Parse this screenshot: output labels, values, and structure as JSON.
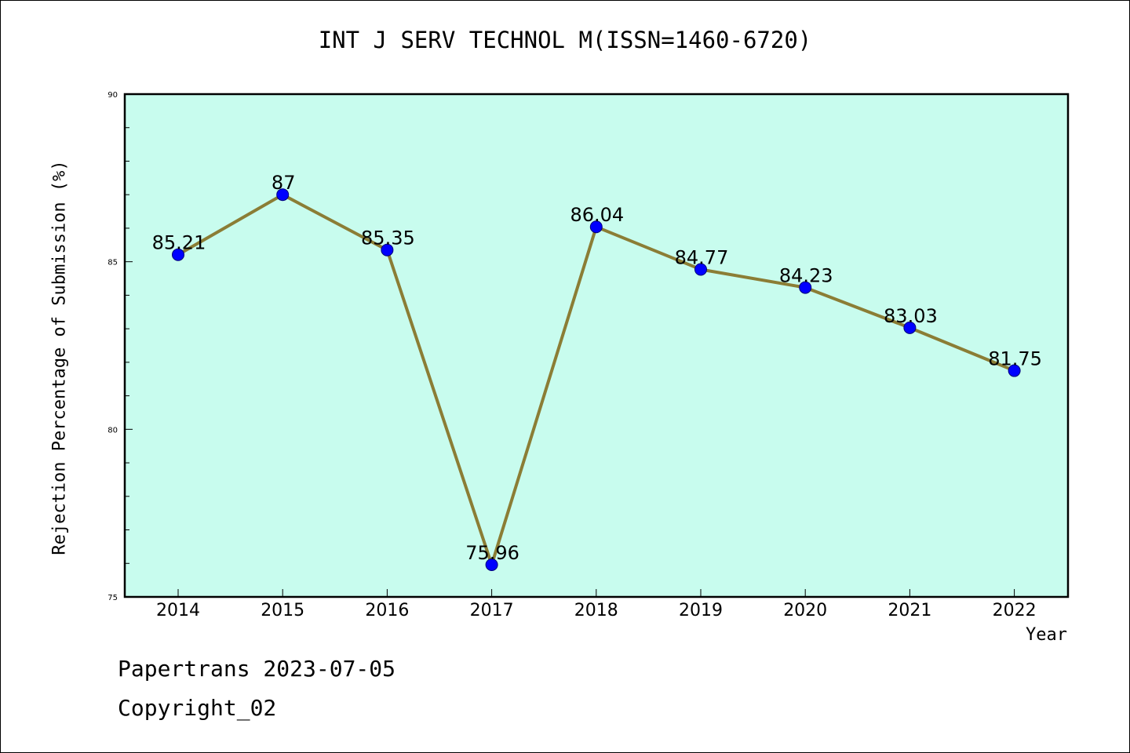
{
  "chart_data": {
    "type": "line",
    "title": "INT J SERV TECHNOL M(ISSN=1460-6720)",
    "xlabel": "Year",
    "ylabel": "Rejection Percentage of Submission (%)",
    "categories": [
      "2014",
      "2015",
      "2016",
      "2017",
      "2018",
      "2019",
      "2020",
      "2021",
      "2022"
    ],
    "series": [
      {
        "values": [
          85.21,
          87,
          85.35,
          75.96,
          86.04,
          84.77,
          84.23,
          83.03,
          81.75
        ],
        "labels": [
          "85.21",
          "87",
          "85.35",
          "75.96",
          "86.04",
          "84.77",
          "84.23",
          "83.03",
          "81.75"
        ]
      }
    ],
    "ylim": [
      75,
      90
    ],
    "yticks": [
      "75",
      "80",
      "85",
      "90"
    ],
    "grid": false,
    "colors": {
      "plot_background": "#c8fcee",
      "line": "#8b7d35",
      "marker": "#0000ff"
    }
  },
  "footer": {
    "line1": "Papertrans 2023-07-05",
    "line2": "Copyright_02"
  }
}
